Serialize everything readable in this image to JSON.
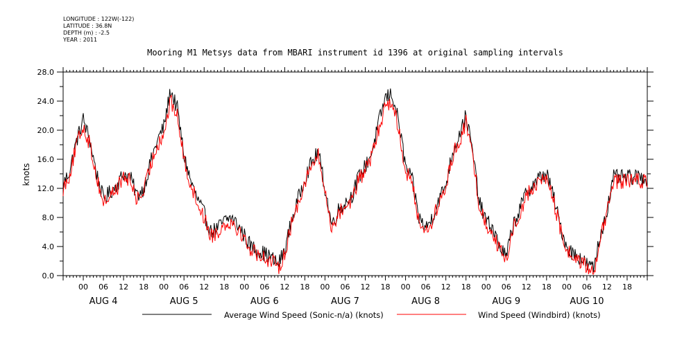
{
  "header": {
    "longitude": "LONGITUDE : 122W(-122)",
    "latitude": "LATITUDE : 36.8N",
    "depth": "DEPTH (m) : -2.5",
    "year": "YEAR : 2011"
  },
  "chart_data": {
    "type": "line",
    "title": "Mooring M1 Metsys data from MBARI instrument id 1396 at original sampling intervals",
    "ylabel": "knots",
    "xlabel": "",
    "ylim": [
      0,
      28
    ],
    "xlim_hours": [
      -6,
      168
    ],
    "y_ticks": [
      "0.0",
      "4.0",
      "8.0",
      "12.0",
      "16.0",
      "20.0",
      "24.0",
      "28.0"
    ],
    "x_tick_labels": [
      "00",
      "06",
      "12",
      "18",
      "00",
      "06",
      "12",
      "18",
      "00",
      "06",
      "12",
      "18",
      "00",
      "06",
      "12",
      "18",
      "00",
      "06",
      "12",
      "18",
      "00",
      "06",
      "12",
      "18",
      "00",
      "06",
      "12",
      "18"
    ],
    "day_labels": [
      "AUG  4",
      "AUG  5",
      "AUG  6",
      "AUG  7",
      "AUG  8",
      "AUG  9",
      "AUG 10"
    ],
    "grid": false,
    "legend_position": "bottom",
    "colors": {
      "sonic": "#000000",
      "windbird": "#ff0000"
    },
    "series": [
      {
        "name": "Average Wind Speed (Sonic-n/a) (knots)",
        "color": "#000000",
        "x": [
          -6,
          -4,
          -2,
          0,
          2,
          4,
          6,
          8,
          10,
          12,
          14,
          16,
          18,
          20,
          22,
          24,
          26,
          28,
          30,
          32,
          34,
          36,
          38,
          40,
          42,
          44,
          46,
          48,
          50,
          52,
          54,
          56,
          58,
          60,
          62,
          64,
          66,
          68,
          70,
          72,
          74,
          76,
          78,
          80,
          82,
          84,
          86,
          88,
          90,
          92,
          94,
          96,
          98,
          100,
          102,
          104,
          106,
          108,
          110,
          112,
          114,
          116,
          118,
          120,
          122,
          124,
          126,
          128,
          130,
          132,
          134,
          136,
          138,
          140,
          142,
          144,
          146,
          148,
          150,
          152,
          154,
          156,
          158,
          160,
          162,
          164,
          166,
          168
        ],
        "y": [
          12.5,
          14.5,
          18.5,
          21.5,
          18.5,
          14.0,
          10.5,
          11.5,
          12.5,
          14.0,
          13.5,
          11.0,
          12.0,
          15.5,
          18.5,
          20.5,
          25.5,
          23.0,
          16.5,
          13.0,
          10.5,
          8.5,
          6.0,
          6.5,
          7.5,
          8.0,
          7.0,
          5.5,
          4.0,
          3.5,
          3.0,
          2.5,
          1.5,
          3.5,
          7.5,
          10.5,
          13.5,
          15.5,
          17.0,
          12.0,
          7.0,
          9.0,
          10.0,
          11.0,
          13.5,
          15.0,
          17.0,
          21.0,
          24.5,
          25.0,
          21.0,
          15.0,
          13.0,
          8.0,
          6.5,
          8.0,
          10.5,
          12.5,
          17.0,
          19.5,
          22.0,
          17.0,
          10.0,
          7.5,
          6.5,
          4.0,
          2.5,
          7.0,
          9.0,
          11.5,
          12.5,
          13.5,
          14.0,
          11.0,
          7.0,
          4.0,
          3.0,
          2.5,
          1.5,
          1.0,
          5.5,
          9.0,
          13.5,
          13.5,
          13.5,
          13.5,
          13.5,
          13.5
        ]
      },
      {
        "name": "Wind Speed (Windbird) (knots)",
        "color": "#ff0000",
        "x": [
          -6,
          -4,
          -2,
          0,
          2,
          4,
          6,
          8,
          10,
          12,
          14,
          16,
          18,
          20,
          22,
          24,
          26,
          28,
          30,
          32,
          34,
          36,
          38,
          40,
          42,
          44,
          46,
          48,
          50,
          52,
          54,
          56,
          58,
          60,
          62,
          64,
          66,
          68,
          70,
          72,
          74,
          76,
          78,
          80,
          82,
          84,
          86,
          88,
          90,
          92,
          94,
          96,
          98,
          100,
          102,
          104,
          106,
          108,
          110,
          112,
          114,
          116,
          118,
          120,
          122,
          124,
          126,
          128,
          130,
          132,
          134,
          136,
          138,
          140,
          142,
          144,
          146,
          148,
          150,
          152,
          154,
          156,
          158,
          160,
          162,
          164,
          166,
          168
        ],
        "y": [
          12.0,
          14.0,
          18.0,
          20.5,
          18.0,
          13.5,
          10.0,
          11.0,
          12.0,
          13.5,
          13.0,
          10.5,
          11.5,
          15.0,
          18.0,
          19.5,
          24.0,
          22.0,
          16.0,
          12.5,
          10.0,
          8.0,
          5.5,
          6.0,
          7.0,
          7.5,
          6.5,
          5.0,
          3.5,
          3.0,
          2.5,
          2.0,
          1.0,
          3.0,
          7.0,
          10.0,
          13.0,
          15.0,
          16.5,
          11.5,
          6.5,
          8.5,
          9.5,
          10.5,
          13.0,
          14.5,
          16.5,
          20.0,
          23.5,
          24.0,
          20.0,
          14.5,
          12.5,
          7.5,
          6.0,
          7.5,
          10.0,
          12.0,
          16.5,
          18.5,
          21.0,
          16.5,
          9.5,
          7.0,
          6.0,
          3.5,
          2.0,
          6.5,
          8.5,
          11.0,
          12.0,
          13.0,
          13.5,
          10.5,
          6.5,
          3.5,
          2.5,
          2.0,
          1.0,
          0.5,
          5.0,
          8.5,
          13.0,
          13.0,
          13.0,
          13.0,
          13.0,
          13.0
        ]
      }
    ]
  }
}
